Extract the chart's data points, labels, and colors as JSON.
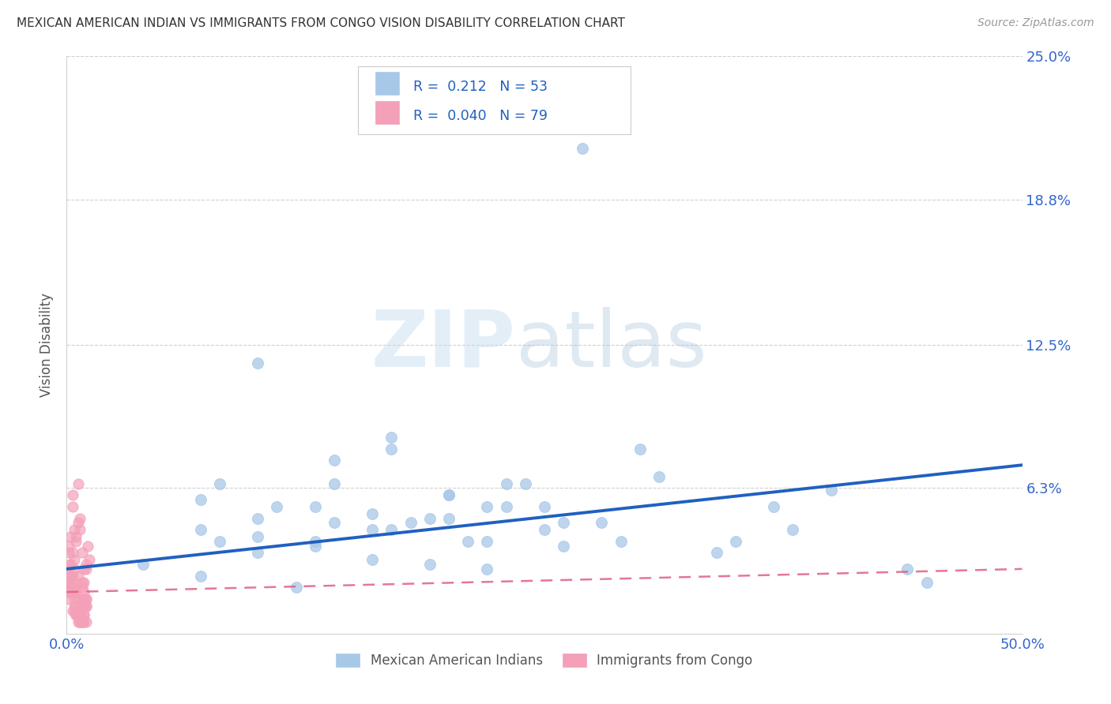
{
  "title": "MEXICAN AMERICAN INDIAN VS IMMIGRANTS FROM CONGO VISION DISABILITY CORRELATION CHART",
  "source": "Source: ZipAtlas.com",
  "ylabel": "Vision Disability",
  "xlim": [
    0.0,
    0.5
  ],
  "ylim": [
    0.0,
    0.25
  ],
  "xticks": [
    0.0,
    0.1,
    0.2,
    0.3,
    0.4,
    0.5
  ],
  "xticklabels": [
    "0.0%",
    "",
    "",
    "",
    "",
    "50.0%"
  ],
  "yticks": [
    0.0,
    0.063,
    0.125,
    0.188,
    0.25
  ],
  "yticklabels": [
    "",
    "6.3%",
    "12.5%",
    "18.8%",
    "25.0%"
  ],
  "blue_R": 0.212,
  "blue_N": 53,
  "pink_R": 0.04,
  "pink_N": 79,
  "blue_color": "#a8c8e8",
  "pink_color": "#f4a0b8",
  "blue_line_color": "#2060c0",
  "pink_line_color": "#e06080",
  "watermark_zip": "ZIP",
  "watermark_atlas": "atlas",
  "legend_label_blue": "Mexican American Indians",
  "legend_label_pink": "Immigrants from Congo",
  "blue_scatter_x": [
    0.27,
    0.1,
    0.14,
    0.17,
    0.2,
    0.14,
    0.17,
    0.07,
    0.1,
    0.13,
    0.07,
    0.1,
    0.13,
    0.16,
    0.1,
    0.14,
    0.17,
    0.08,
    0.11,
    0.2,
    0.23,
    0.16,
    0.2,
    0.23,
    0.26,
    0.29,
    0.3,
    0.35,
    0.38,
    0.25,
    0.28,
    0.22,
    0.25,
    0.19,
    0.22,
    0.31,
    0.34,
    0.37,
    0.18,
    0.21,
    0.24,
    0.07,
    0.13,
    0.16,
    0.19,
    0.22,
    0.4,
    0.44,
    0.26,
    0.04,
    0.08,
    0.12,
    0.45
  ],
  "blue_scatter_y": [
    0.21,
    0.117,
    0.065,
    0.085,
    0.06,
    0.075,
    0.08,
    0.058,
    0.042,
    0.055,
    0.045,
    0.05,
    0.04,
    0.052,
    0.035,
    0.048,
    0.045,
    0.04,
    0.055,
    0.06,
    0.065,
    0.045,
    0.05,
    0.055,
    0.048,
    0.04,
    0.08,
    0.04,
    0.045,
    0.055,
    0.048,
    0.055,
    0.045,
    0.05,
    0.04,
    0.068,
    0.035,
    0.055,
    0.048,
    0.04,
    0.065,
    0.025,
    0.038,
    0.032,
    0.03,
    0.028,
    0.062,
    0.028,
    0.038,
    0.03,
    0.065,
    0.02,
    0.022
  ],
  "pink_scatter_x": [
    0.005,
    0.008,
    0.01,
    0.003,
    0.006,
    0.009,
    0.002,
    0.012,
    0.004,
    0.007,
    0.001,
    0.011,
    0.003,
    0.006,
    0.009,
    0.002,
    0.005,
    0.008,
    0.001,
    0.004,
    0.007,
    0.01,
    0.003,
    0.006,
    0.009,
    0.002,
    0.005,
    0.008,
    0.001,
    0.004,
    0.007,
    0.01,
    0.003,
    0.006,
    0.009,
    0.002,
    0.005,
    0.008,
    0.001,
    0.004,
    0.007,
    0.01,
    0.003,
    0.006,
    0.009,
    0.002,
    0.005,
    0.008,
    0.001,
    0.004,
    0.007,
    0.01,
    0.003,
    0.006,
    0.009,
    0.002,
    0.005,
    0.008,
    0.001,
    0.004,
    0.007,
    0.01,
    0.003,
    0.006,
    0.009,
    0.002,
    0.005,
    0.008,
    0.001,
    0.004,
    0.007,
    0.01,
    0.003,
    0.006,
    0.009,
    0.002,
    0.005,
    0.008,
    0.001
  ],
  "pink_scatter_y": [
    0.04,
    0.035,
    0.03,
    0.055,
    0.065,
    0.028,
    0.025,
    0.032,
    0.045,
    0.05,
    0.02,
    0.038,
    0.06,
    0.048,
    0.022,
    0.03,
    0.042,
    0.015,
    0.035,
    0.028,
    0.045,
    0.012,
    0.018,
    0.025,
    0.008,
    0.042,
    0.01,
    0.02,
    0.038,
    0.032,
    0.005,
    0.015,
    0.025,
    0.008,
    0.018,
    0.03,
    0.012,
    0.022,
    0.028,
    0.02,
    0.01,
    0.005,
    0.035,
    0.015,
    0.008,
    0.025,
    0.018,
    0.005,
    0.022,
    0.012,
    0.008,
    0.028,
    0.01,
    0.005,
    0.015,
    0.02,
    0.008,
    0.012,
    0.018,
    0.01,
    0.005,
    0.015,
    0.022,
    0.008,
    0.012,
    0.018,
    0.01,
    0.005,
    0.025,
    0.015,
    0.008,
    0.012,
    0.02,
    0.01,
    0.005,
    0.018,
    0.008,
    0.012,
    0.015
  ]
}
